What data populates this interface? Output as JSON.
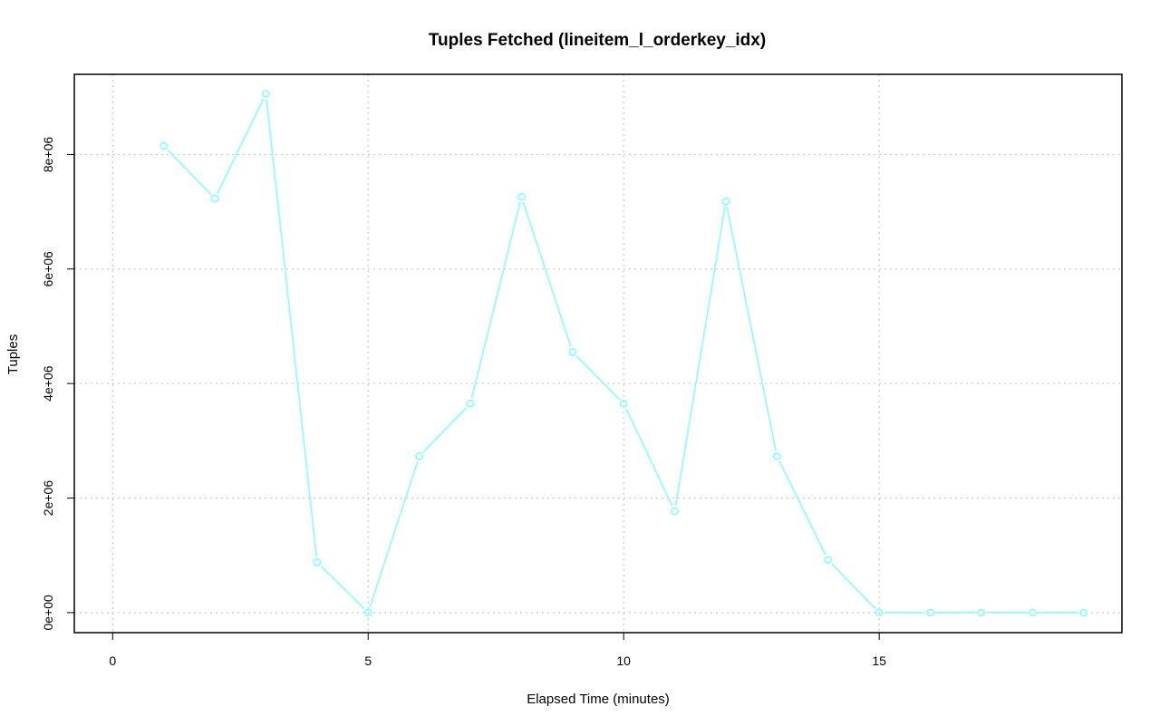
{
  "chart_data": {
    "type": "line",
    "title": "Tuples Fetched (lineitem_l_orderkey_idx)",
    "xlabel": "Elapsed Time (minutes)",
    "ylabel": "Tuples",
    "xlim": [
      -0.75,
      19.75
    ],
    "ylim": [
      -350000,
      9400000
    ],
    "x_ticks": [
      0,
      5,
      10,
      15
    ],
    "x_tick_labels": [
      "0",
      "5",
      "10",
      "15"
    ],
    "y_ticks": [
      0,
      2000000,
      4000000,
      6000000,
      8000000
    ],
    "y_tick_labels": [
      "0e+00",
      "2e+06",
      "4e+06",
      "6e+06",
      "8e+06"
    ],
    "grid": true,
    "line_color": "#7fffff",
    "series": [
      {
        "x": [
          1,
          2,
          3,
          4,
          5,
          6,
          7,
          8,
          9,
          10,
          11,
          12,
          13,
          14,
          15,
          16,
          17,
          18,
          19
        ],
        "values": [
          8150000,
          7230000,
          9060000,
          880000,
          0,
          2730000,
          3650000,
          7260000,
          4550000,
          3650000,
          1770000,
          7180000,
          2730000,
          920000,
          0,
          0,
          0,
          0,
          0
        ]
      }
    ]
  }
}
